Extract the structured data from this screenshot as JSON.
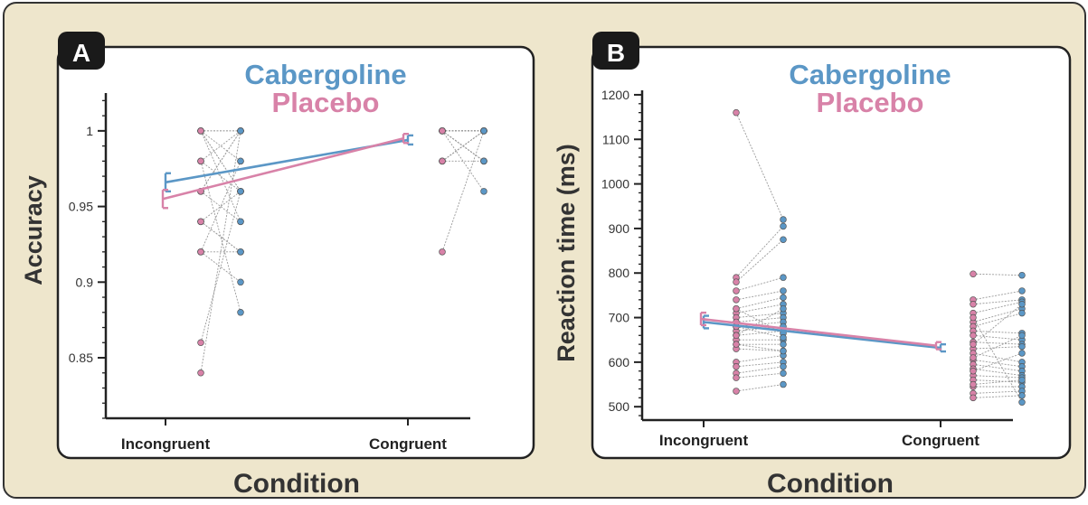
{
  "colors": {
    "background": "#eee6cc",
    "frame": "#222222",
    "panel": "#ffffff",
    "cabergoline": "#5b97c6",
    "placebo": "#d882a8",
    "pair_line": "#9a9a9a"
  },
  "figure": {
    "shared_xlabel": "Condition"
  },
  "chart_data": [
    {
      "type": "scatter",
      "panel_label": "A",
      "legend": [
        "Cabergoline",
        "Placebo"
      ],
      "legend_placement": "top-center",
      "xlabel": "Condition",
      "ylabel": "Accuracy",
      "categories": [
        "Incongruent",
        "Congruent"
      ],
      "ylim": [
        0.81,
        1.025
      ],
      "yticks": [
        0.85,
        0.9,
        0.95,
        1
      ],
      "ytick_labels": [
        "0.85",
        "0.9",
        "0.95",
        "1"
      ],
      "minor_ytick_step": 0.01,
      "grid": false,
      "series": [
        {
          "name": "Cabergoline",
          "means": [
            0.966,
            0.994
          ],
          "errors": [
            0.006,
            0.003
          ]
        },
        {
          "name": "Placebo",
          "means": [
            0.955,
            0.995
          ],
          "errors": [
            0.006,
            0.003
          ]
        }
      ],
      "paired_points": [
        {
          "category": "Incongruent",
          "placebo": [
            1,
            1,
            1,
            1,
            0.98,
            0.98,
            0.96,
            0.96,
            0.94,
            0.94,
            0.92,
            0.92,
            0.86,
            0.84,
            1,
            0.98,
            0.96,
            0.92,
            1,
            0.94
          ],
          "cabergoline": [
            1,
            0.98,
            1,
            0.96,
            1,
            0.96,
            0.94,
            1,
            0.92,
            0.96,
            0.92,
            0.9,
            0.96,
            1,
            0.94,
            0.88,
            1,
            0.98,
            0.96,
            0.92
          ]
        },
        {
          "category": "Congruent",
          "placebo": [
            1,
            1,
            1,
            1,
            0.98,
            0.98,
            0.98,
            1,
            1,
            0.98,
            0.92,
            1,
            1,
            1,
            0.98,
            1,
            1,
            1,
            1,
            1
          ],
          "cabergoline": [
            1,
            0.98,
            1,
            1,
            1,
            0.98,
            1,
            0.98,
            1,
            1,
            1,
            0.96,
            0.98,
            1,
            1,
            1,
            0.98,
            1,
            1,
            1
          ]
        }
      ]
    },
    {
      "type": "scatter",
      "panel_label": "B",
      "legend": [
        "Cabergoline",
        "Placebo"
      ],
      "legend_placement": "top-center",
      "xlabel": "Condition",
      "ylabel": "Reaction time (ms)",
      "categories": [
        "Incongruent",
        "Congruent"
      ],
      "ylim": [
        470,
        1210
      ],
      "yticks": [
        500,
        600,
        700,
        800,
        900,
        1000,
        1100,
        1200
      ],
      "ytick_labels": [
        "500",
        "600",
        "700",
        "800",
        "900",
        "1000",
        "1100",
        "1200"
      ],
      "minor_ytick_step": 20,
      "grid": false,
      "series": [
        {
          "name": "Cabergoline",
          "means": [
            690,
            632
          ],
          "errors": [
            14,
            8
          ]
        },
        {
          "name": "Placebo",
          "means": [
            697,
            637
          ],
          "errors": [
            14,
            8
          ]
        }
      ],
      "paired_points": [
        {
          "category": "Incongruent",
          "placebo": [
            1160,
            790,
            780,
            760,
            740,
            720,
            710,
            700,
            690,
            680,
            670,
            660,
            650,
            640,
            630,
            600,
            590,
            575,
            565,
            535,
            720,
            680,
            660,
            640
          ],
          "cabergoline": [
            920,
            905,
            875,
            790,
            760,
            745,
            730,
            710,
            700,
            690,
            680,
            670,
            650,
            640,
            625,
            615,
            600,
            590,
            575,
            550,
            665,
            655,
            720,
            625
          ]
        },
        {
          "category": "Congruent",
          "placebo": [
            798,
            740,
            730,
            710,
            690,
            680,
            670,
            660,
            645,
            630,
            620,
            605,
            595,
            585,
            570,
            560,
            545,
            530,
            520,
            700,
            640,
            610,
            580,
            550
          ],
          "cabergoline": [
            795,
            760,
            740,
            735,
            720,
            710,
            665,
            650,
            640,
            635,
            600,
            590,
            580,
            570,
            565,
            555,
            545,
            535,
            525,
            510,
            730,
            660,
            620,
            560
          ]
        }
      ]
    }
  ]
}
